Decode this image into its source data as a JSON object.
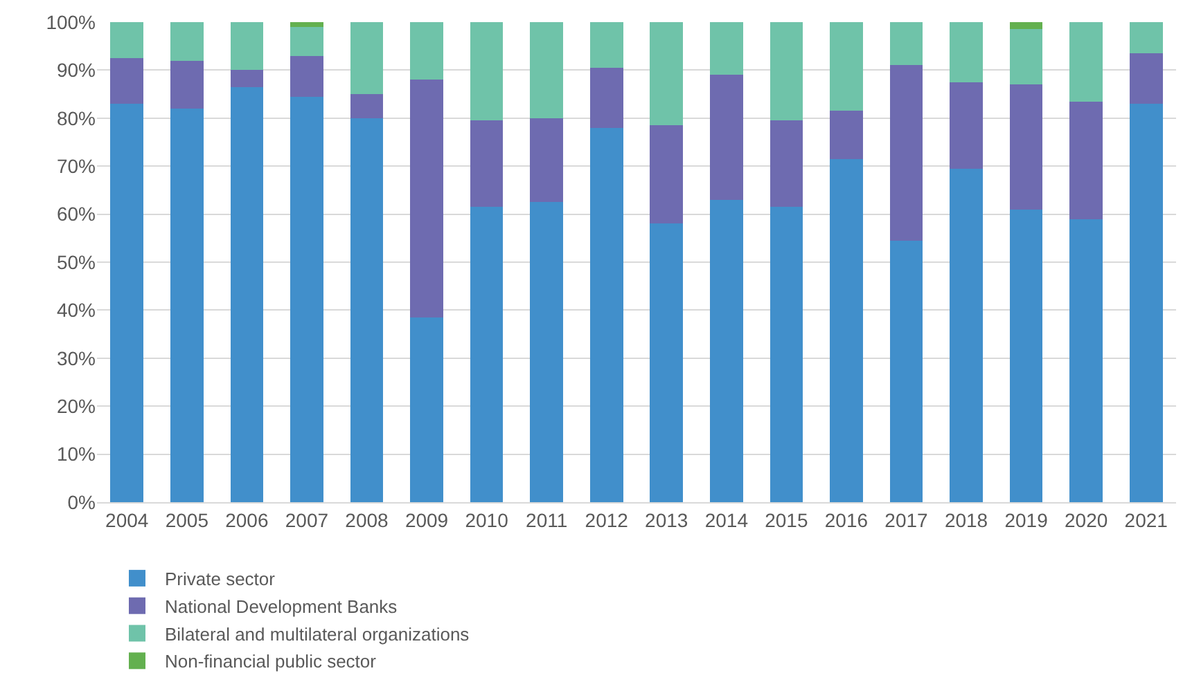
{
  "chart_data": {
    "type": "bar",
    "stacked": true,
    "categories": [
      "2004",
      "2005",
      "2006",
      "2007",
      "2008",
      "2009",
      "2010",
      "2011",
      "2012",
      "2013",
      "2014",
      "2015",
      "2016",
      "2017",
      "2018",
      "2019",
      "2020",
      "2021"
    ],
    "series": [
      {
        "name": "Private sector",
        "color": "#418fcb",
        "values": [
          83,
          82,
          86.5,
          84.5,
          80,
          38.5,
          61.5,
          62.5,
          78,
          58,
          63,
          61.5,
          71.5,
          54.5,
          69.5,
          61,
          59,
          83
        ]
      },
      {
        "name": "National Development Banks",
        "color": "#6e6bb0",
        "values": [
          9.5,
          10,
          3.5,
          8.5,
          5,
          49.5,
          18,
          17.5,
          12.5,
          20.5,
          26,
          18,
          10,
          36.5,
          18,
          26,
          24.5,
          10.5
        ]
      },
      {
        "name": "Bilateral and multilateral organizations",
        "color": "#6fc3a9",
        "values": [
          7.5,
          8,
          10,
          6,
          15,
          12,
          20.5,
          20,
          9.5,
          21.5,
          11,
          20.5,
          18.5,
          9,
          12.5,
          11.5,
          16.5,
          6.5
        ]
      },
      {
        "name": "Non-financial public sector",
        "color": "#63b04f",
        "values": [
          0,
          0,
          0,
          1,
          0,
          0,
          0,
          0,
          0,
          0,
          0,
          0,
          0,
          0,
          0,
          1.5,
          0,
          0
        ]
      }
    ],
    "ylim": [
      0,
      100
    ],
    "yticks": [
      {
        "value": 0,
        "label": "0%"
      },
      {
        "value": 10,
        "label": "10%"
      },
      {
        "value": 20,
        "label": "20%"
      },
      {
        "value": 30,
        "label": "30%"
      },
      {
        "value": 40,
        "label": "40%"
      },
      {
        "value": 50,
        "label": "50%"
      },
      {
        "value": 60,
        "label": "60%"
      },
      {
        "value": 70,
        "label": "70%"
      },
      {
        "value": 80,
        "label": "80%"
      },
      {
        "value": 90,
        "label": "90%"
      },
      {
        "value": 100,
        "label": "100%"
      }
    ],
    "grid": "y",
    "legend": "bottom"
  }
}
